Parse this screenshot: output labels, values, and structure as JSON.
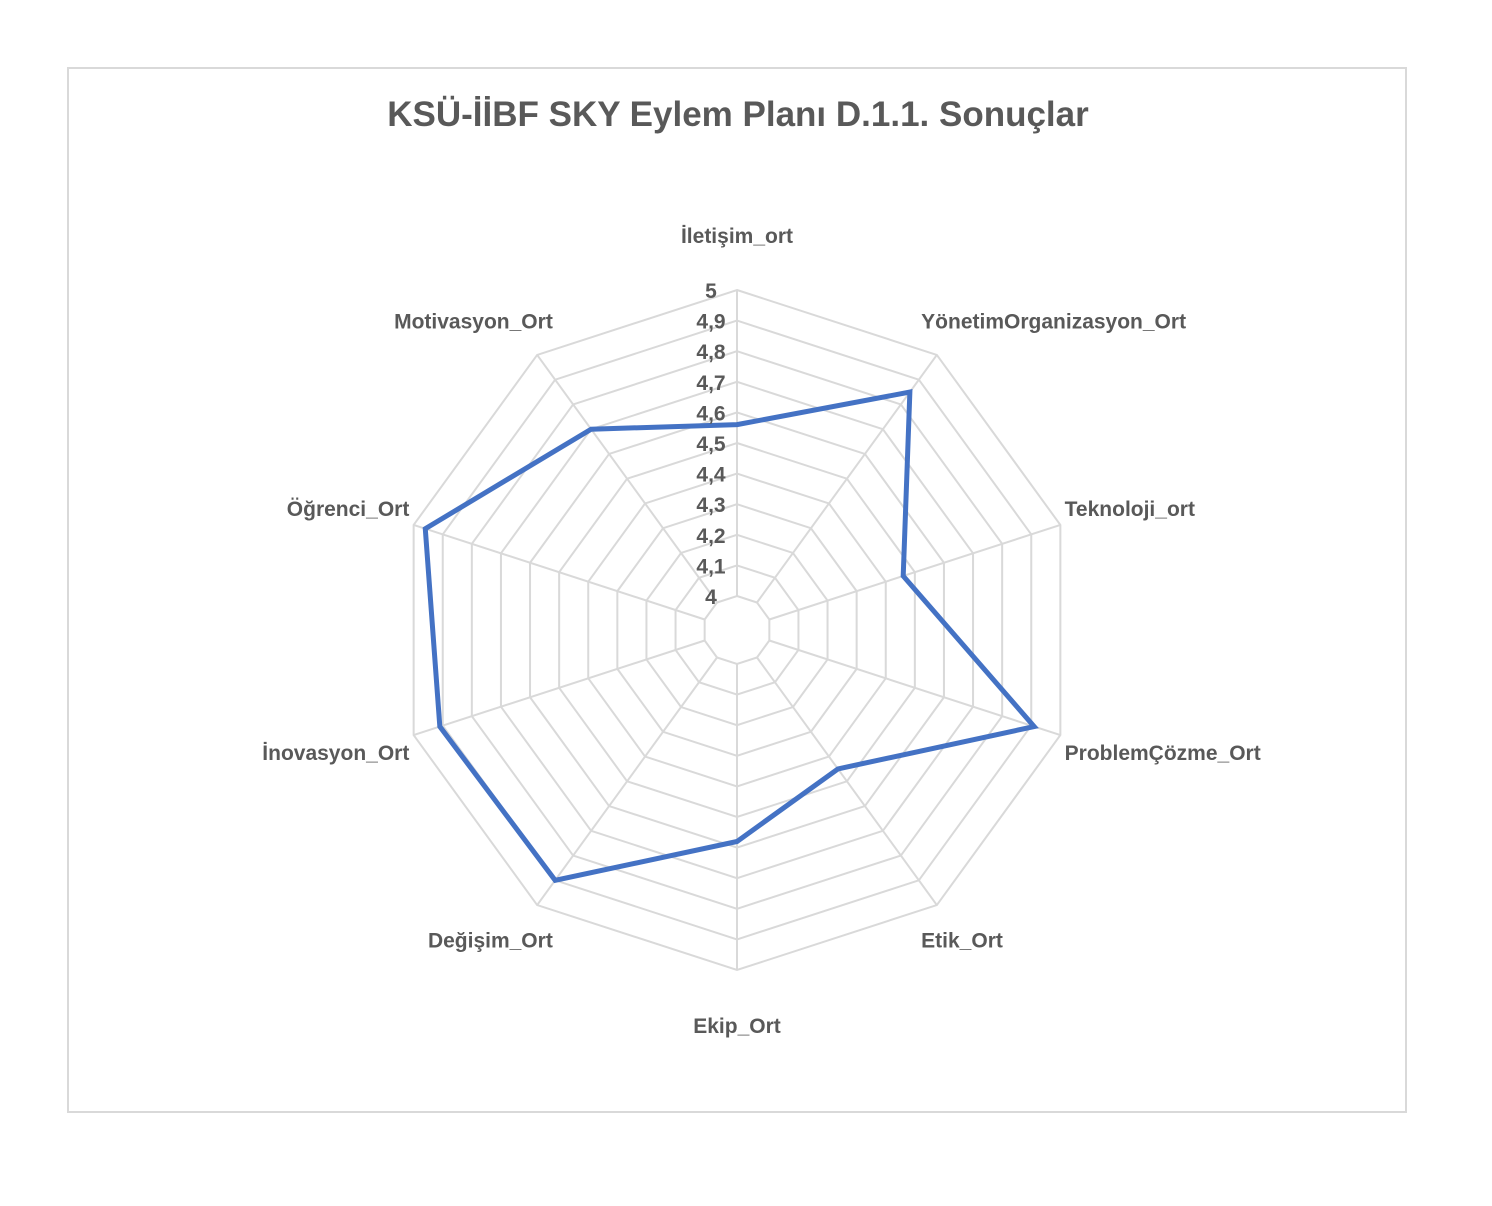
{
  "chart_data": {
    "type": "radar",
    "title": "KSÜ-İİBF SKY Eylem Planı D.1.1. Sonuçlar",
    "categories": [
      "İletişim_ort",
      "YönetimOrganizasyon_Ort",
      "Teknoloji_ort",
      "ProblemÇözme_Ort",
      "Etik_Ort",
      "Ekip_Ort",
      "Değişim_Ort",
      "İnovasyon_Ort",
      "Öğrenci_Ort",
      "Motivasyon_Ort"
    ],
    "series": [
      {
        "values": [
          4.56,
          4.85,
          4.46,
          4.91,
          4.45,
          4.58,
          4.9,
          4.91,
          4.96,
          4.7
        ]
      }
    ],
    "rlim": [
      4,
      5
    ],
    "ticks": [
      "4",
      "4,1",
      "4,2",
      "4,3",
      "4,4",
      "4,5",
      "4,6",
      "4,7",
      "4,8",
      "4,9",
      "5"
    ],
    "grid": true,
    "legend": "none",
    "colors": {
      "series": "#4472c4",
      "grid": "#d9d9d9",
      "text": "#595959"
    }
  }
}
